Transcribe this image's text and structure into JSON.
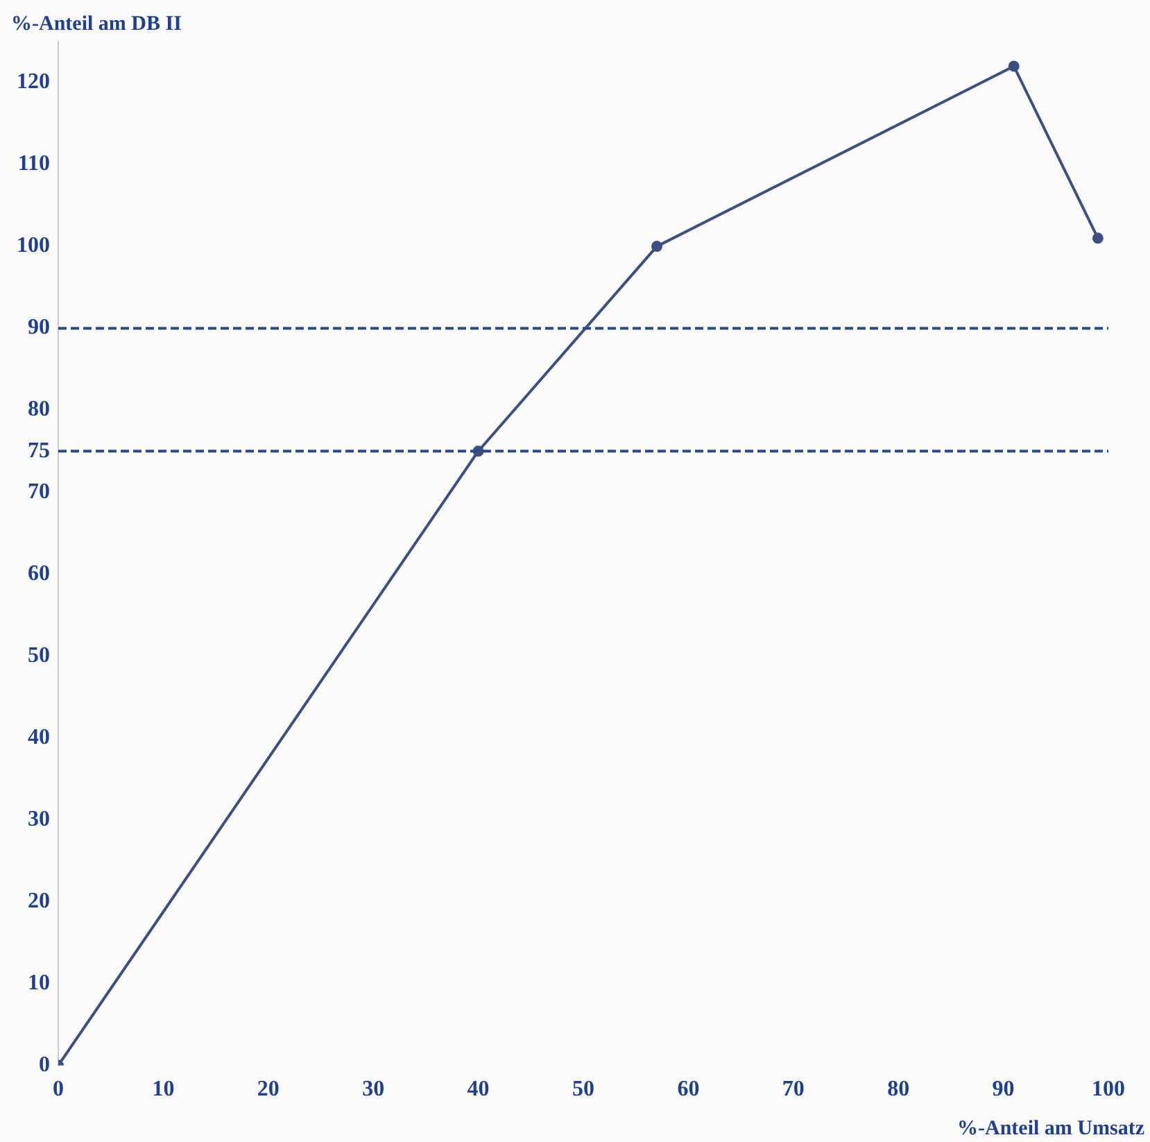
{
  "chart_data": {
    "type": "line",
    "xlabel": "%-Anteil am Umsatz",
    "ylabel": "%-Anteil am DB II",
    "series": [
      {
        "color": "#3d4f80",
        "x": [
          0,
          40,
          57,
          91,
          99
        ],
        "values": [
          0,
          75,
          100,
          122,
          101
        ]
      }
    ],
    "xlim": [
      0,
      100
    ],
    "xticks": [
      0,
      10,
      20,
      30,
      40,
      50,
      60,
      70,
      80,
      90,
      100
    ],
    "ylim": [
      0,
      125
    ],
    "yticks": [
      0,
      10,
      20,
      30,
      40,
      50,
      60,
      70,
      75,
      80,
      90,
      100,
      110,
      120
    ],
    "ref_lines": [
      {
        "axis": "y",
        "value": 90,
        "color": "#2a4a8c",
        "line_style": "dashed"
      },
      {
        "axis": "y",
        "value": 75,
        "color": "#2a4a8c",
        "line_style": "dashed"
      }
    ],
    "grid": false,
    "legend": false,
    "marker": "circle",
    "line_style": "solid"
  }
}
